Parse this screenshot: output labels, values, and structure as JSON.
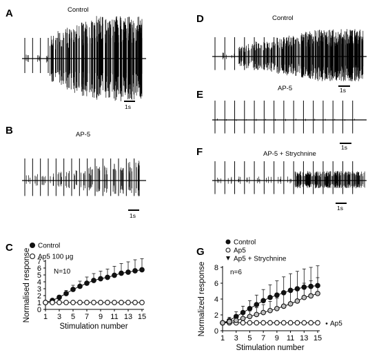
{
  "panels": {
    "A": {
      "letter": "A",
      "title": "Control",
      "scale": "1s"
    },
    "B": {
      "letter": "B",
      "title": "AP-5",
      "scale": "1s"
    },
    "D": {
      "letter": "D",
      "title": "Control",
      "scale": "1s"
    },
    "E": {
      "letter": "E",
      "title": "AP-5",
      "scale": "1s"
    },
    "F": {
      "letter": "F",
      "title": "AP-5 + Strychnine",
      "scale": "1s"
    }
  },
  "chart_data": [
    {
      "panel": "C",
      "type": "line",
      "ylabel": "Normalised response",
      "xlabel": "Stimulation number",
      "xlim": [
        1,
        15
      ],
      "ylim": [
        0,
        7
      ],
      "xticks": [
        "1",
        "3",
        "5",
        "7",
        "9",
        "11",
        "13",
        "15"
      ],
      "yticks": [
        "0",
        "1",
        "2",
        "3",
        "4",
        "5",
        "6",
        "7"
      ],
      "annotation": "N=10",
      "x": [
        1,
        2,
        3,
        4,
        5,
        6,
        7,
        8,
        9,
        10,
        11,
        12,
        13,
        14,
        15
      ],
      "series": [
        {
          "name": "Control",
          "marker": "filled-circle",
          "values": [
            1.0,
            1.3,
            1.75,
            2.3,
            2.9,
            3.35,
            3.8,
            4.2,
            4.45,
            4.65,
            4.95,
            5.25,
            5.4,
            5.6,
            5.75
          ],
          "errors": [
            0.0,
            0.2,
            0.3,
            0.45,
            0.6,
            0.75,
            0.9,
            1.0,
            1.1,
            1.2,
            1.3,
            1.4,
            1.5,
            1.6,
            1.6
          ]
        },
        {
          "name": "Ap5 100 μg",
          "marker": "open-circle",
          "values": [
            1.0,
            1.0,
            1.0,
            1.0,
            1.0,
            1.0,
            1.0,
            1.0,
            1.0,
            1.0,
            1.0,
            1.0,
            1.0,
            1.0,
            1.0
          ],
          "errors": [
            0,
            0,
            0,
            0,
            0,
            0,
            0,
            0,
            0,
            0,
            0,
            0,
            0,
            0,
            0
          ]
        }
      ]
    },
    {
      "panel": "G",
      "type": "line",
      "ylabel": "Normalized response",
      "xlabel": "Stimulation number",
      "xlim": [
        1,
        15
      ],
      "ylim": [
        0,
        8
      ],
      "xticks": [
        "1",
        "3",
        "5",
        "7",
        "9",
        "11",
        "13",
        "15"
      ],
      "yticks": [
        "0",
        "2",
        "4",
        "6",
        "8"
      ],
      "annotation": "n=6",
      "end_label": "Ap5",
      "x": [
        1,
        2,
        3,
        4,
        5,
        6,
        7,
        8,
        9,
        10,
        11,
        12,
        13,
        14,
        15
      ],
      "series": [
        {
          "name": "Control",
          "marker": "filled-circle",
          "values": [
            1.0,
            1.3,
            1.8,
            2.3,
            2.8,
            3.3,
            3.8,
            4.2,
            4.5,
            4.8,
            5.1,
            5.3,
            5.5,
            5.6,
            5.7
          ],
          "errors": [
            0.0,
            0.4,
            0.6,
            0.8,
            1.0,
            1.2,
            1.4,
            1.6,
            1.8,
            2.0,
            2.1,
            2.2,
            2.3,
            2.4,
            2.5
          ]
        },
        {
          "name": "Ap5",
          "marker": "open-circle",
          "values": [
            1.0,
            1.0,
            1.0,
            1.0,
            1.0,
            1.0,
            1.0,
            1.0,
            1.0,
            1.0,
            1.0,
            1.0,
            1.0,
            1.0,
            1.0
          ],
          "errors": [
            0,
            0,
            0,
            0,
            0,
            0,
            0,
            0,
            0,
            0,
            0,
            0,
            0,
            0,
            0
          ]
        },
        {
          "name": "Ap5 + Strychnine",
          "marker": "grey-circle",
          "values": [
            1.0,
            1.15,
            1.3,
            1.55,
            1.8,
            2.05,
            2.3,
            2.55,
            2.8,
            3.1,
            3.4,
            3.75,
            4.2,
            4.4,
            4.7
          ],
          "errors": [
            0.0,
            0.3,
            0.4,
            0.55,
            0.7,
            0.85,
            1.0,
            1.15,
            1.3,
            1.5,
            1.6,
            1.7,
            1.8,
            1.9,
            2.0
          ]
        }
      ]
    }
  ]
}
